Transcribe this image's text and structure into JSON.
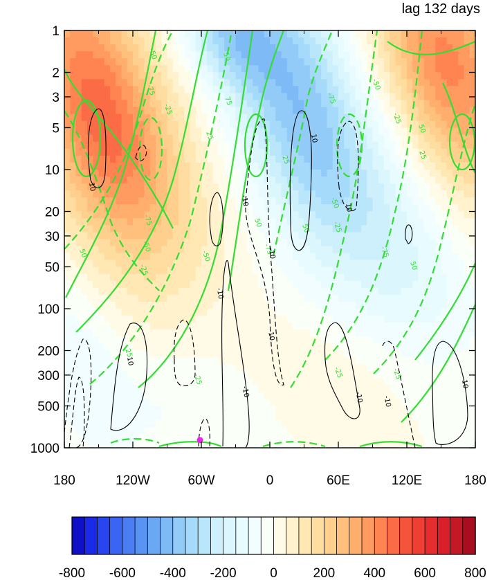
{
  "chart_data": {
    "type": "heatmap",
    "title": "",
    "subtitle": "lag 132 days",
    "xlabel": "",
    "ylabel": "",
    "x_ticks": [
      "180",
      "120W",
      "60W",
      "0",
      "60E",
      "120E",
      "180"
    ],
    "x_tick_values": [
      -180,
      -120,
      -60,
      0,
      60,
      120,
      180
    ],
    "y_ticks": [
      "1",
      "2",
      "3",
      "5",
      "10",
      "20",
      "30",
      "50",
      "100",
      "200",
      "300",
      "500",
      "1000"
    ],
    "y_tick_values": [
      1,
      2,
      3,
      5,
      10,
      20,
      30,
      50,
      100,
      200,
      300,
      500,
      1000
    ],
    "y_scale": "log",
    "y_reversed": true,
    "xlim": [
      -180,
      180
    ],
    "ylim": [
      1000,
      1
    ],
    "shading": {
      "levels": [
        -800,
        -750,
        -700,
        -650,
        -600,
        -550,
        -500,
        -450,
        -400,
        -350,
        -300,
        -250,
        -200,
        -150,
        -100,
        -50,
        0,
        50,
        100,
        150,
        200,
        250,
        300,
        350,
        400,
        450,
        500,
        550,
        600,
        650,
        700,
        750,
        800
      ],
      "colorbar_labels": [
        "-800",
        "-600",
        "-400",
        "-200",
        "0",
        "200",
        "400",
        "600",
        "800"
      ],
      "colorbar_label_values": [
        -800,
        -600,
        -400,
        -200,
        0,
        200,
        400,
        600,
        800
      ],
      "colors": [
        "#1010c8",
        "#1a2ae6",
        "#2846f0",
        "#3a64f4",
        "#4a7ef2",
        "#5a94f2",
        "#6aa8f4",
        "#7ebaf6",
        "#92cbf8",
        "#a6dafa",
        "#bae6fb",
        "#cdf0fc",
        "#dcf6fd",
        "#e8fbfe",
        "#f2fdff",
        "#fafff8",
        "#fffbe6",
        "#fff2cc",
        "#ffe8b4",
        "#ffdca0",
        "#ffcf8e",
        "#ffc07e",
        "#ffae6e",
        "#ff9a60",
        "#ff8452",
        "#fb6c46",
        "#f5543c",
        "#ef3e34",
        "#e52c2e",
        "#d81f2a",
        "#c41826",
        "#a80e20"
      ]
    },
    "green_contours": {
      "labels": [
        "-75",
        "-50",
        "-25",
        "25",
        "50",
        "75"
      ],
      "color": "#33dd33"
    },
    "black_contours": {
      "labels": [
        "-10",
        "10"
      ],
      "color": "#000000"
    },
    "marker": {
      "lon": -60,
      "pressure": 880,
      "color": "#ee22ee"
    },
    "grid": false,
    "legend": "none"
  }
}
